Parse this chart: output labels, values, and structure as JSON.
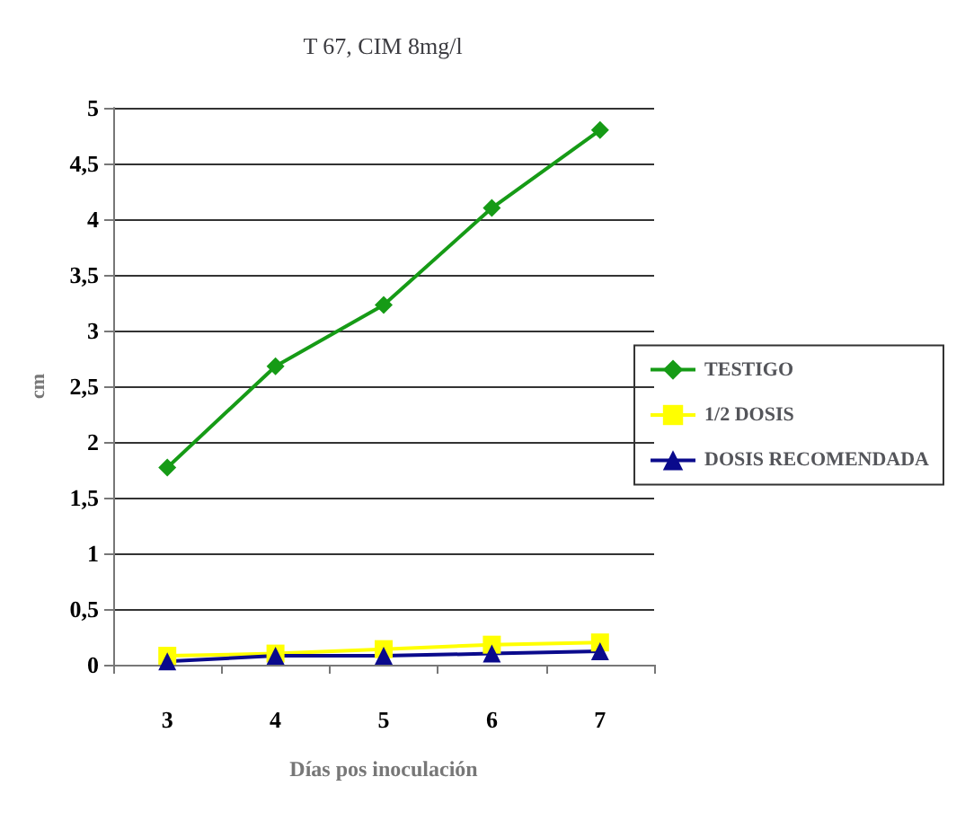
{
  "chart_data": {
    "type": "line",
    "title": "T 67, CIM 8mg/l",
    "xlabel": "Días pos inoculación",
    "ylabel": "cm",
    "categories": [
      "3",
      "4",
      "5",
      "6",
      "7"
    ],
    "series": [
      {
        "name": "TESTIGO",
        "color": "#169b16",
        "marker": "diamond",
        "values": [
          1.77,
          2.68,
          3.23,
          4.1,
          4.8
        ]
      },
      {
        "name": "1/2 DOSIS",
        "color": "#ffff00",
        "marker": "square",
        "values": [
          0.08,
          0.1,
          0.14,
          0.18,
          0.2
        ]
      },
      {
        "name": "DOSIS RECOMENDADA",
        "color": "#0a0a8c",
        "marker": "triangle",
        "values": [
          0.03,
          0.08,
          0.08,
          0.1,
          0.12
        ]
      }
    ],
    "ylim": [
      0,
      5
    ],
    "yticks": [
      0,
      {
        "value": 0.5,
        "label": "0,5"
      },
      1,
      {
        "value": 1.5,
        "label": "1,5"
      },
      2,
      {
        "value": 2.5,
        "label": "2,5"
      },
      3,
      {
        "value": 3.5,
        "label": "3,5"
      },
      4,
      {
        "value": 4.5,
        "label": "4,5"
      },
      5
    ],
    "grid": "y",
    "legend": "right"
  }
}
